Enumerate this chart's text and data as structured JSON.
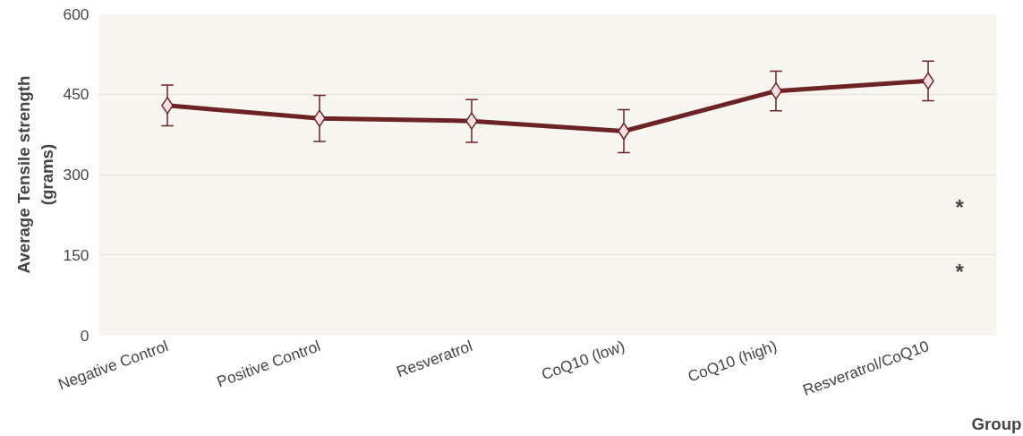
{
  "chart_data": {
    "type": "line",
    "xlabel": "Group",
    "ylabel": "Average Tensile strength\n(grams)",
    "categories": [
      "Negative Control",
      "Positive Control",
      "Resveratrol",
      "CoQ10 (low)",
      "CoQ10 (high)",
      "Resveratrol/CoQ10"
    ],
    "series": [
      {
        "color": "#6b2326",
        "values": [
          429,
          405,
          400,
          381,
          456,
          475
        ],
        "errors": [
          38,
          43,
          40,
          40,
          37,
          37
        ]
      }
    ],
    "ylim": [
      0,
      600
    ],
    "yticks": [
      0,
      150,
      300,
      450,
      600
    ],
    "grid": "y",
    "marker": "diamond",
    "line_style": "solid",
    "annotations": [
      "*",
      "*"
    ]
  }
}
